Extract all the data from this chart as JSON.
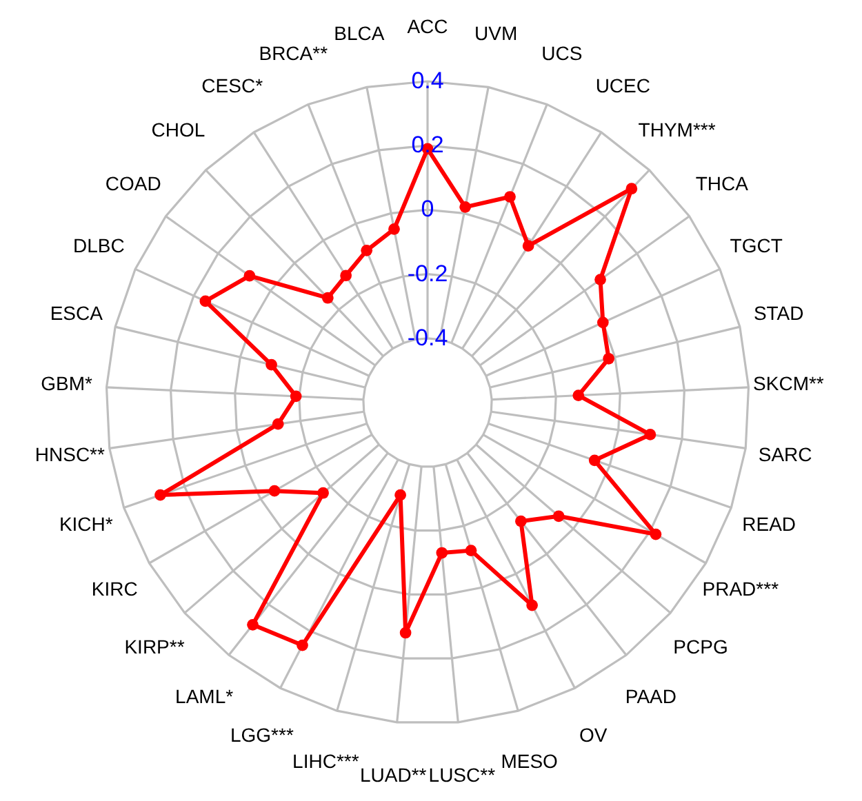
{
  "chart_data": {
    "type": "radar",
    "categories": [
      "ACC",
      "UVM",
      "UCS",
      "UCEC",
      "THYM***",
      "THCA",
      "TGCT",
      "STAD",
      "SKCM**",
      "SARC",
      "READ",
      "PRAD***",
      "PCPG",
      "PAAD",
      "OV",
      "MESO",
      "LUSC**",
      "LUAD**",
      "LIHC***",
      "LGG***",
      "LAML*",
      "KIRP**",
      "KIRC",
      "KICH*",
      "HNSC**",
      "GBM*",
      "ESCA",
      "DLBC",
      "COAD",
      "CHOL",
      "CESC*",
      "BRCA**",
      "BLCA"
    ],
    "series": [
      {
        "color": "#ff0000",
        "values": [
          0.19,
          0.02,
          0.09,
          -0.02,
          0.32,
          0.06,
          0.0,
          -0.02,
          -0.13,
          0.1,
          -0.05,
          0.22,
          -0.06,
          -0.13,
          0.11,
          -0.12,
          -0.13,
          0.12,
          -0.3,
          0.25,
          0.28,
          -0.17,
          -0.05,
          0.28,
          -0.13,
          -0.19,
          -0.1,
          0.16,
          0.08,
          -0.15,
          -0.13,
          -0.09,
          -0.05
        ]
      }
    ],
    "ylim": [
      -0.6,
      0.4
    ],
    "yticks": [
      -0.4,
      -0.2,
      0,
      0.2,
      0.4
    ],
    "grid": true,
    "marker": "circle"
  }
}
